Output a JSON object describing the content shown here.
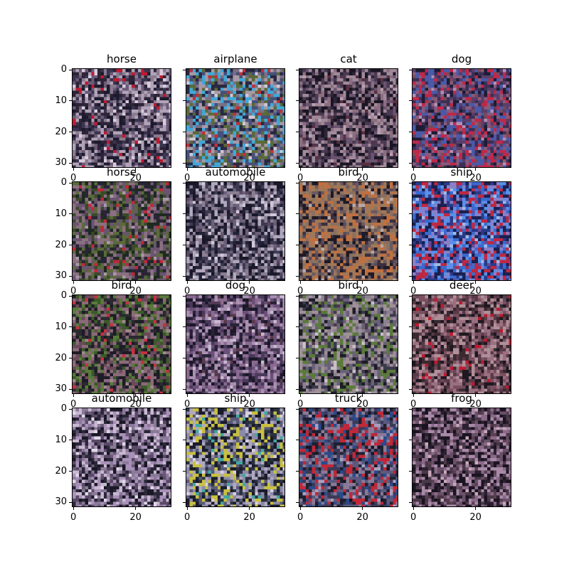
{
  "panels": [
    {
      "title": "horse",
      "palette": [
        "#3a3550",
        "#6b5a78",
        "#1c1a2c",
        "#8a7a8e",
        "#b0a3b8",
        "#2d2438",
        "#c01a30",
        "#d8ccdc"
      ]
    },
    {
      "title": "airplane",
      "palette": [
        "#46507a",
        "#7a6f86",
        "#2a2840",
        "#a89aa4",
        "#40a8d8",
        "#5a6a3a",
        "#c0303a",
        "#d0c8d8"
      ]
    },
    {
      "title": "cat",
      "palette": [
        "#2e2638",
        "#4a3a52",
        "#6a5470",
        "#8c6e7e",
        "#1a1624",
        "#a08a9a",
        "#5a3040",
        "#b8a0b0"
      ]
    },
    {
      "title": "dog",
      "palette": [
        "#3a3058",
        "#5a3e6a",
        "#1e1c34",
        "#8a5a7a",
        "#c02848",
        "#4a5aa8",
        "#7a4a5a",
        "#b090b8"
      ]
    },
    {
      "title": "horse",
      "palette": [
        "#1e2a20",
        "#3a4a2a",
        "#5a6a3a",
        "#2a2438",
        "#6a5470",
        "#8a7080",
        "#c0283a",
        "#a89aa8"
      ]
    },
    {
      "title": "automobile",
      "palette": [
        "#222236",
        "#3e3a52",
        "#6a6078",
        "#8a7e92",
        "#b0a8bc",
        "#1a1828",
        "#5a4a62",
        "#d0c8d8"
      ]
    },
    {
      "title": "bird",
      "palette": [
        "#3a3040",
        "#6a5a60",
        "#8a7060",
        "#1e1a26",
        "#a07858",
        "#c07040",
        "#5a4a5a",
        "#b8a8a8"
      ]
    },
    {
      "title": "ship",
      "palette": [
        "#2a3a8a",
        "#3a6ad0",
        "#5a90e8",
        "#8a80c8",
        "#1a2050",
        "#c02840",
        "#a0b8e8",
        "#6a4a98"
      ]
    },
    {
      "title": "bird",
      "palette": [
        "#3a5a2a",
        "#5a7a3a",
        "#2a2a30",
        "#6a4a5a",
        "#8a6a7a",
        "#1e1c26",
        "#a08890",
        "#c83040"
      ]
    },
    {
      "title": "dog",
      "palette": [
        "#2a2238",
        "#4a3a5a",
        "#6a5078",
        "#1a1828",
        "#8a6a90",
        "#a890b0",
        "#5a3a4a",
        "#c8b8d0"
      ]
    },
    {
      "title": "bird",
      "palette": [
        "#3a3a4a",
        "#6a6078",
        "#8a8090",
        "#1e1c26",
        "#5a7a3a",
        "#a09098",
        "#4a3a4a",
        "#c8c0c8"
      ]
    },
    {
      "title": "deer",
      "palette": [
        "#3a2a30",
        "#5a3a48",
        "#7a5060",
        "#1e1820",
        "#9a7080",
        "#b09098",
        "#c01a30",
        "#6a4a5a"
      ]
    },
    {
      "title": "automobile",
      "palette": [
        "#2a2838",
        "#5a4a68",
        "#8a7a98",
        "#c8b8d0",
        "#1a1826",
        "#a890b8",
        "#6a5a78",
        "#e0d8e8"
      ]
    },
    {
      "title": "ship",
      "palette": [
        "#2a3040",
        "#5a5a78",
        "#8a8aa8",
        "#b0a8c0",
        "#1a1c2a",
        "#c8c040",
        "#40a8a0",
        "#d8d0e0"
      ]
    },
    {
      "title": "truck",
      "palette": [
        "#1e2030",
        "#3a3a58",
        "#5a5a80",
        "#2a4a8a",
        "#c02838",
        "#8a7a98",
        "#141624",
        "#a8a0c0"
      ]
    },
    {
      "title": "frog",
      "palette": [
        "#2a2030",
        "#4a3848",
        "#6a5068",
        "#8a6a88",
        "#1a1420",
        "#a88aa8",
        "#c8a8b8",
        "#5a4050"
      ]
    }
  ],
  "yticks": [
    "0",
    "10",
    "20",
    "30"
  ],
  "xticks": [
    "0",
    "20"
  ]
}
